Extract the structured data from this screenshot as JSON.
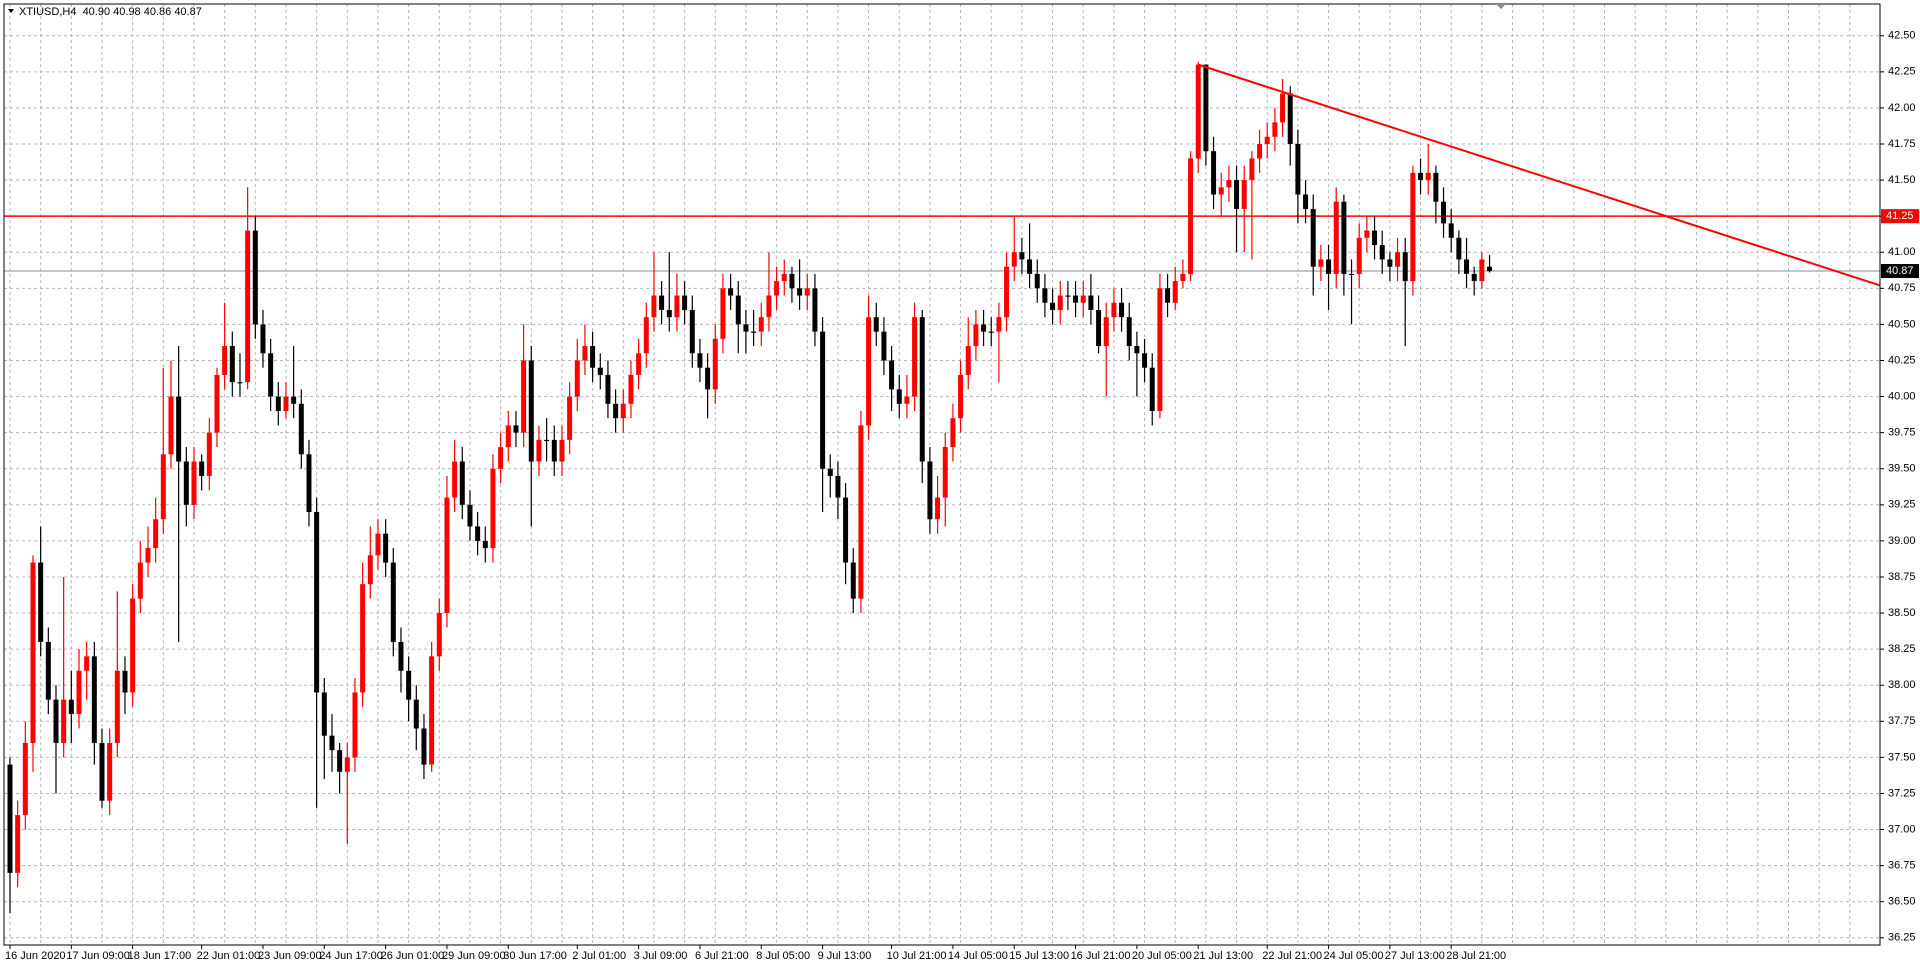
{
  "chart_data": {
    "type": "candlestick",
    "title": "XTIUSD,H4  40.90 40.98 40.86 40.87",
    "up_color": "#ff0000",
    "down_color": "#000000",
    "grid": true,
    "ylim": [
      36.2,
      42.72
    ],
    "yticks": [
      36.25,
      {
        "value": 36.5,
        "label": "36.50"
      },
      36.75,
      {
        "value": 37,
        "label": "37.00"
      },
      37.25,
      {
        "value": 37.5,
        "label": "37.50"
      },
      37.75,
      {
        "value": 38,
        "label": "38.00"
      },
      38.25,
      {
        "value": 38.5,
        "label": "38.50"
      },
      38.75,
      {
        "value": 39,
        "label": "39.00"
      },
      39.25,
      {
        "value": 39.5,
        "label": "39.50"
      },
      39.75,
      {
        "value": 40,
        "label": "40.00"
      },
      40.25,
      {
        "value": 40.5,
        "label": "40.50"
      },
      40.75,
      {
        "value": 41,
        "label": "41.00"
      },
      41.25,
      {
        "value": 41.5,
        "label": "41.50"
      },
      41.75,
      {
        "value": 42,
        "label": "42.00"
      },
      42.25,
      {
        "value": 42.5,
        "label": "42.50"
      }
    ],
    "categories": [
      "16 Jun 2020",
      null,
      null,
      null,
      null,
      null,
      null,
      null,
      "17 Jun 09:00",
      null,
      null,
      null,
      null,
      null,
      null,
      null,
      "18 Jun 17:00",
      null,
      null,
      null,
      null,
      null,
      null,
      null,
      null,
      "22 Jun 01:00",
      null,
      null,
      null,
      null,
      null,
      null,
      null,
      "23 Jun 09:00",
      null,
      null,
      null,
      null,
      null,
      null,
      null,
      "24 Jun 17:00",
      null,
      null,
      null,
      null,
      null,
      null,
      null,
      "26 Jun 01:00",
      null,
      null,
      null,
      null,
      null,
      null,
      null,
      "29 Jun 09:00",
      null,
      null,
      null,
      null,
      null,
      null,
      null,
      "30 Jun 17:00",
      null,
      null,
      null,
      null,
      null,
      null,
      null,
      null,
      "2 Jul 01:00",
      null,
      null,
      null,
      null,
      null,
      null,
      null,
      "3 Jul 09:00",
      null,
      null,
      null,
      null,
      null,
      null,
      null,
      "6 Jul 21:00",
      null,
      null,
      null,
      null,
      null,
      null,
      null,
      "8 Jul 05:00",
      null,
      null,
      null,
      null,
      null,
      null,
      null,
      "9 Jul 13:00",
      null,
      null,
      null,
      null,
      null,
      null,
      null,
      null,
      "10 Jul 21:00",
      null,
      null,
      null,
      null,
      null,
      null,
      null,
      "14 Jul 05:00",
      null,
      null,
      null,
      null,
      null,
      null,
      null,
      "15 Jul 13:00",
      null,
      null,
      null,
      null,
      null,
      null,
      null,
      "16 Jul 21:00",
      null,
      null,
      null,
      null,
      null,
      null,
      null,
      "20 Jul 05:00",
      null,
      null,
      null,
      null,
      null,
      null,
      null,
      "21 Jul 13:00",
      null,
      null,
      null,
      null,
      null,
      null,
      null,
      null,
      "22 Jul 21:00",
      null,
      null,
      null,
      null,
      null,
      null,
      null,
      "24 Jul 05:00",
      null,
      null,
      null,
      null,
      null,
      null,
      null,
      "27 Jul 13:00",
      null,
      null,
      null,
      null,
      null,
      null,
      null,
      "28 Jul 21:00",
      null,
      null,
      null,
      null,
      null
    ],
    "ohlc": [
      [
        37.45,
        37.5,
        36.42,
        36.7
      ],
      [
        36.7,
        37.2,
        36.6,
        37.1
      ],
      [
        37.1,
        37.75,
        37.0,
        37.6
      ],
      [
        37.6,
        38.9,
        37.4,
        38.85
      ],
      [
        38.85,
        39.1,
        38.2,
        38.3
      ],
      [
        38.3,
        38.4,
        37.8,
        37.9
      ],
      [
        37.9,
        38.0,
        37.25,
        37.6
      ],
      [
        37.6,
        38.75,
        37.5,
        37.9
      ],
      [
        37.9,
        38.1,
        37.6,
        37.8
      ],
      [
        37.8,
        38.25,
        37.7,
        38.1
      ],
      [
        38.1,
        38.3,
        37.9,
        38.2
      ],
      [
        38.2,
        38.3,
        37.45,
        37.6
      ],
      [
        37.6,
        37.7,
        37.15,
        37.2
      ],
      [
        37.2,
        37.7,
        37.1,
        37.6
      ],
      [
        37.6,
        38.65,
        37.5,
        38.1
      ],
      [
        38.1,
        38.2,
        37.8,
        37.95
      ],
      [
        37.95,
        38.7,
        37.85,
        38.6
      ],
      [
        38.6,
        39.0,
        38.5,
        38.85
      ],
      [
        38.85,
        39.1,
        38.75,
        38.95
      ],
      [
        38.95,
        39.3,
        38.85,
        39.15
      ],
      [
        39.15,
        40.2,
        39.05,
        39.6
      ],
      [
        39.6,
        40.25,
        39.5,
        40.0
      ],
      [
        40.0,
        40.35,
        38.3,
        39.55
      ],
      [
        39.55,
        39.65,
        39.1,
        39.25
      ],
      [
        39.25,
        39.65,
        39.15,
        39.55
      ],
      [
        39.55,
        39.6,
        39.35,
        39.45
      ],
      [
        39.45,
        39.85,
        39.35,
        39.75
      ],
      [
        39.75,
        40.2,
        39.65,
        40.15
      ],
      [
        40.15,
        40.65,
        40.05,
        40.35
      ],
      [
        40.35,
        40.45,
        40.0,
        40.1
      ],
      [
        40.1,
        40.3,
        40.0,
        40.1
      ],
      [
        40.1,
        41.45,
        40.05,
        41.15
      ],
      [
        41.15,
        41.25,
        40.4,
        40.5
      ],
      [
        40.5,
        40.6,
        40.2,
        40.3
      ],
      [
        40.3,
        40.4,
        39.9,
        40.0
      ],
      [
        40.0,
        40.1,
        39.8,
        39.9
      ],
      [
        39.9,
        40.1,
        39.85,
        40.0
      ],
      [
        40.0,
        40.35,
        39.85,
        39.95
      ],
      [
        39.95,
        40.05,
        39.5,
        39.6
      ],
      [
        39.6,
        39.7,
        39.1,
        39.2
      ],
      [
        39.2,
        39.3,
        37.15,
        37.95
      ],
      [
        37.95,
        38.05,
        37.35,
        37.65
      ],
      [
        37.65,
        37.8,
        37.4,
        37.55
      ],
      [
        37.55,
        37.6,
        37.25,
        37.4
      ],
      [
        37.4,
        37.6,
        36.9,
        37.5
      ],
      [
        37.5,
        38.05,
        37.4,
        37.95
      ],
      [
        37.95,
        38.85,
        37.85,
        38.7
      ],
      [
        38.7,
        39.1,
        38.6,
        38.9
      ],
      [
        38.9,
        39.15,
        38.8,
        39.05
      ],
      [
        39.05,
        39.15,
        38.75,
        38.85
      ],
      [
        38.85,
        38.95,
        38.2,
        38.3
      ],
      [
        38.3,
        38.4,
        37.95,
        38.1
      ],
      [
        38.1,
        38.2,
        37.75,
        37.9
      ],
      [
        37.9,
        38.0,
        37.55,
        37.7
      ],
      [
        37.7,
        37.8,
        37.35,
        37.45
      ],
      [
        37.45,
        38.3,
        37.4,
        38.2
      ],
      [
        38.2,
        38.6,
        38.1,
        38.5
      ],
      [
        38.5,
        39.45,
        38.4,
        39.3
      ],
      [
        39.3,
        39.7,
        39.2,
        39.55
      ],
      [
        39.55,
        39.65,
        39.15,
        39.25
      ],
      [
        39.25,
        39.35,
        39.0,
        39.1
      ],
      [
        39.1,
        39.2,
        38.9,
        39.0
      ],
      [
        39.0,
        39.1,
        38.85,
        38.95
      ],
      [
        38.95,
        39.6,
        38.85,
        39.5
      ],
      [
        39.5,
        39.75,
        39.4,
        39.65
      ],
      [
        39.65,
        39.9,
        39.55,
        39.8
      ],
      [
        39.8,
        39.9,
        39.65,
        39.75
      ],
      [
        39.75,
        40.5,
        39.65,
        40.25
      ],
      [
        40.25,
        40.35,
        39.1,
        39.55
      ],
      [
        39.55,
        39.8,
        39.45,
        39.7
      ],
      [
        39.7,
        39.85,
        39.55,
        39.7
      ],
      [
        39.7,
        39.8,
        39.45,
        39.55
      ],
      [
        39.55,
        39.8,
        39.45,
        39.7
      ],
      [
        39.7,
        40.1,
        39.6,
        40.0
      ],
      [
        40.0,
        40.4,
        39.9,
        40.25
      ],
      [
        40.25,
        40.5,
        40.15,
        40.35
      ],
      [
        40.35,
        40.45,
        40.1,
        40.2
      ],
      [
        40.2,
        40.3,
        40.05,
        40.15
      ],
      [
        40.15,
        40.25,
        39.85,
        39.95
      ],
      [
        39.95,
        40.05,
        39.75,
        39.85
      ],
      [
        39.85,
        40.05,
        39.75,
        39.95
      ],
      [
        39.95,
        40.25,
        39.85,
        40.15
      ],
      [
        40.15,
        40.4,
        40.05,
        40.3
      ],
      [
        40.3,
        40.65,
        40.2,
        40.55
      ],
      [
        40.55,
        41.0,
        40.45,
        40.7
      ],
      [
        40.7,
        40.8,
        40.5,
        40.6
      ],
      [
        40.6,
        41.0,
        40.45,
        40.55
      ],
      [
        40.55,
        40.85,
        40.45,
        40.7
      ],
      [
        40.7,
        40.8,
        40.5,
        40.6
      ],
      [
        40.6,
        40.7,
        40.2,
        40.3
      ],
      [
        40.3,
        40.4,
        40.1,
        40.2
      ],
      [
        40.2,
        40.3,
        39.85,
        40.05
      ],
      [
        40.05,
        40.5,
        39.95,
        40.4
      ],
      [
        40.4,
        40.85,
        40.3,
        40.75
      ],
      [
        40.75,
        40.85,
        40.6,
        40.7
      ],
      [
        40.7,
        40.8,
        40.3,
        40.5
      ],
      [
        40.5,
        40.6,
        40.3,
        40.45
      ],
      [
        40.45,
        40.6,
        40.35,
        40.45
      ],
      [
        40.45,
        40.65,
        40.35,
        40.55
      ],
      [
        40.55,
        41.0,
        40.45,
        40.7
      ],
      [
        40.7,
        40.9,
        40.6,
        40.8
      ],
      [
        40.8,
        40.95,
        40.7,
        40.85
      ],
      [
        40.85,
        40.9,
        40.65,
        40.75
      ],
      [
        40.75,
        40.95,
        40.6,
        40.7
      ],
      [
        40.7,
        40.85,
        40.6,
        40.75
      ],
      [
        40.75,
        40.85,
        40.35,
        40.45
      ],
      [
        40.45,
        40.55,
        39.2,
        39.5
      ],
      [
        39.5,
        39.6,
        39.3,
        39.45
      ],
      [
        39.45,
        39.55,
        39.15,
        39.3
      ],
      [
        39.3,
        39.4,
        38.7,
        38.85
      ],
      [
        38.85,
        38.95,
        38.5,
        38.6
      ],
      [
        38.6,
        39.9,
        38.5,
        39.8
      ],
      [
        39.8,
        40.7,
        39.7,
        40.55
      ],
      [
        40.55,
        40.65,
        40.35,
        40.45
      ],
      [
        40.45,
        40.55,
        40.15,
        40.25
      ],
      [
        40.25,
        40.35,
        39.9,
        40.05
      ],
      [
        40.05,
        40.15,
        39.85,
        39.95
      ],
      [
        39.95,
        40.15,
        39.85,
        40.0
      ],
      [
        40.0,
        40.65,
        39.9,
        40.55
      ],
      [
        40.55,
        40.6,
        39.4,
        39.55
      ],
      [
        39.55,
        39.65,
        39.05,
        39.15
      ],
      [
        39.15,
        39.45,
        39.05,
        39.3
      ],
      [
        39.3,
        39.75,
        39.1,
        39.65
      ],
      [
        39.65,
        39.95,
        39.55,
        39.85
      ],
      [
        39.85,
        40.25,
        39.75,
        40.15
      ],
      [
        40.15,
        40.55,
        40.05,
        40.35
      ],
      [
        40.35,
        40.6,
        40.25,
        40.5
      ],
      [
        40.5,
        40.6,
        40.35,
        40.45
      ],
      [
        40.45,
        40.55,
        40.35,
        40.45
      ],
      [
        40.45,
        40.65,
        40.1,
        40.55
      ],
      [
        40.55,
        41.0,
        40.45,
        40.9
      ],
      [
        40.9,
        41.25,
        40.8,
        41.0
      ],
      [
        41.0,
        41.1,
        40.85,
        40.95
      ],
      [
        40.95,
        41.2,
        40.75,
        40.85
      ],
      [
        40.85,
        40.95,
        40.65,
        40.75
      ],
      [
        40.75,
        40.85,
        40.55,
        40.65
      ],
      [
        40.65,
        40.75,
        40.5,
        40.6
      ],
      [
        40.6,
        40.8,
        40.5,
        40.7
      ],
      [
        40.7,
        40.8,
        40.6,
        40.7
      ],
      [
        40.7,
        40.8,
        40.55,
        40.65
      ],
      [
        40.65,
        40.8,
        40.55,
        40.7
      ],
      [
        40.7,
        40.85,
        40.5,
        40.6
      ],
      [
        40.6,
        40.7,
        40.3,
        40.35
      ],
      [
        40.35,
        40.65,
        40.0,
        40.55
      ],
      [
        40.55,
        40.75,
        40.45,
        40.65
      ],
      [
        40.65,
        40.75,
        40.45,
        40.55
      ],
      [
        40.55,
        40.65,
        40.25,
        40.35
      ],
      [
        40.35,
        40.45,
        40.0,
        40.3
      ],
      [
        40.3,
        40.4,
        40.1,
        40.2
      ],
      [
        40.2,
        40.3,
        39.8,
        39.9
      ],
      [
        39.9,
        40.85,
        39.85,
        40.75
      ],
      [
        40.75,
        40.85,
        40.55,
        40.65
      ],
      [
        40.65,
        40.9,
        40.6,
        40.8
      ],
      [
        40.8,
        40.95,
        40.75,
        40.85
      ],
      [
        40.85,
        41.7,
        40.8,
        41.65
      ],
      [
        41.65,
        42.32,
        41.55,
        42.3
      ],
      [
        42.3,
        42.3,
        41.6,
        41.7
      ],
      [
        41.7,
        41.8,
        41.3,
        41.4
      ],
      [
        41.4,
        41.55,
        41.25,
        41.45
      ],
      [
        41.45,
        41.6,
        41.35,
        41.5
      ],
      [
        41.5,
        41.6,
        41.0,
        41.3
      ],
      [
        41.3,
        41.6,
        41.0,
        41.5
      ],
      [
        41.5,
        41.7,
        40.95,
        41.65
      ],
      [
        41.65,
        41.85,
        41.55,
        41.75
      ],
      [
        41.75,
        41.9,
        41.65,
        41.8
      ],
      [
        41.8,
        42.0,
        41.7,
        41.9
      ],
      [
        41.9,
        42.2,
        41.8,
        42.1
      ],
      [
        42.1,
        42.15,
        41.6,
        41.75
      ],
      [
        41.75,
        41.85,
        41.2,
        41.4
      ],
      [
        41.4,
        41.5,
        41.2,
        41.3
      ],
      [
        41.3,
        41.4,
        40.7,
        40.9
      ],
      [
        40.9,
        41.05,
        40.8,
        40.95
      ],
      [
        40.95,
        41.05,
        40.6,
        40.85
      ],
      [
        40.85,
        41.45,
        40.75,
        41.35
      ],
      [
        41.35,
        41.4,
        40.7,
        40.85
      ],
      [
        40.85,
        40.95,
        40.5,
        40.85
      ],
      [
        40.85,
        41.2,
        40.75,
        41.1
      ],
      [
        41.1,
        41.25,
        41.0,
        41.15
      ],
      [
        41.15,
        41.25,
        40.95,
        41.05
      ],
      [
        41.05,
        41.15,
        40.85,
        40.95
      ],
      [
        40.95,
        41.0,
        40.8,
        40.9
      ],
      [
        40.9,
        41.1,
        40.8,
        41.0
      ],
      [
        41.0,
        41.1,
        40.35,
        40.8
      ],
      [
        40.8,
        41.6,
        40.7,
        41.55
      ],
      [
        41.55,
        41.65,
        41.4,
        41.5
      ],
      [
        41.5,
        41.75,
        41.4,
        41.55
      ],
      [
        41.55,
        41.6,
        41.2,
        41.35
      ],
      [
        41.35,
        41.45,
        41.1,
        41.2
      ],
      [
        41.2,
        41.3,
        41.0,
        41.1
      ],
      [
        41.1,
        41.15,
        40.85,
        40.95
      ],
      [
        40.95,
        41.1,
        40.75,
        40.85
      ],
      [
        40.85,
        40.9,
        40.7,
        40.8
      ],
      [
        40.8,
        41.0,
        40.75,
        40.95
      ],
      [
        40.9,
        40.98,
        40.86,
        40.87
      ]
    ],
    "hlines": [
      {
        "value": 41.25,
        "color": "#ff0000",
        "label_bg": "#ff0000"
      },
      {
        "value": 40.87,
        "color": "#a9b3be",
        "label_bg": "#000000"
      }
    ],
    "trendline": {
      "x": [
        155,
        244
      ],
      "y": [
        42.3,
        40.77
      ],
      "color": "#ff0000"
    }
  }
}
